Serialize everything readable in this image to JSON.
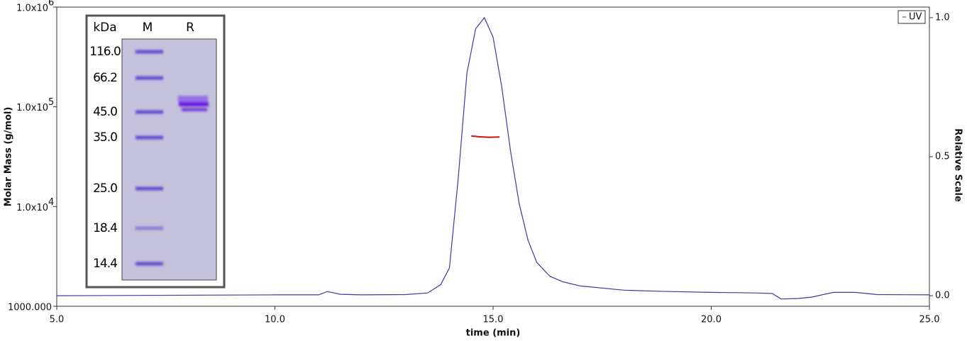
{
  "chart_data": {
    "type": "line",
    "xlabel": "time (min)",
    "ylabel": "Molar Mass (g/mol)",
    "y2label": "Relative Scale",
    "xlim": [
      5,
      25
    ],
    "xticks": [
      {
        "value": 5,
        "label": "5.0"
      },
      {
        "value": 10,
        "label": "10.0"
      },
      {
        "value": 15,
        "label": "15.0"
      },
      {
        "value": 20,
        "label": "20.0"
      },
      {
        "value": 25,
        "label": "25.0"
      }
    ],
    "ylim": [
      1000,
      1000000
    ],
    "yscale": "log",
    "yticks": [
      {
        "value": 1000,
        "label": "1000.000"
      },
      {
        "value": 10000,
        "label": "1.0x10",
        "exponent": "4"
      },
      {
        "value": 100000,
        "label": "1.0x10",
        "exponent": "5"
      },
      {
        "value": 1000000,
        "label": "1.0x10",
        "exponent": "6"
      }
    ],
    "y2lim": [
      -0.038,
      1.038
    ],
    "y2ticks": [
      {
        "value": 0,
        "label": "0.0"
      },
      {
        "value": 0.5,
        "label": "0.5"
      },
      {
        "value": 1,
        "label": "1.0"
      }
    ],
    "legend": "top-right",
    "series": [
      {
        "name": "UV",
        "color": "#3a3aa8",
        "axis": "y2",
        "x": [
          5,
          10,
          11,
          11.2,
          11.5,
          12,
          13,
          13.5,
          13.8,
          14.0,
          14.2,
          14.4,
          14.6,
          14.8,
          15.0,
          15.2,
          15.4,
          15.6,
          15.8,
          16.0,
          16.3,
          16.6,
          17,
          18,
          19,
          20,
          21,
          21.4,
          21.6,
          22,
          22.3,
          22.8,
          23.3,
          23.8,
          25
        ],
        "values": [
          0.0,
          0.003,
          0.003,
          0.015,
          0.005,
          0.003,
          0.004,
          0.01,
          0.04,
          0.1,
          0.42,
          0.8,
          0.96,
          1.0,
          0.93,
          0.75,
          0.52,
          0.33,
          0.2,
          0.12,
          0.07,
          0.05,
          0.035,
          0.02,
          0.015,
          0.012,
          0.01,
          0.008,
          -0.012,
          -0.01,
          -0.005,
          0.012,
          0.012,
          0.004,
          0.003
        ]
      },
      {
        "color": "#cc1111",
        "x": [
          14.5,
          14.7,
          14.9,
          15.15
        ],
        "values": [
          51000,
          50000,
          49500,
          49800
        ]
      }
    ],
    "inset": {
      "headers": [
        "kDa",
        "M",
        "R"
      ],
      "marker_labels": [
        "116.0",
        "66.2",
        "45.0",
        "35.0",
        "25.0",
        "18.4",
        "14.4"
      ]
    }
  }
}
